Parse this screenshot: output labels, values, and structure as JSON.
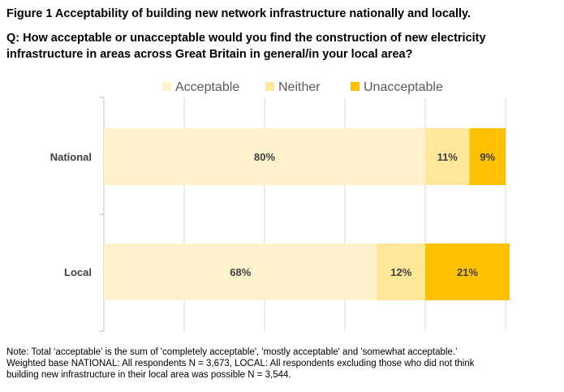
{
  "figure": {
    "title": "Figure 1 Acceptability of building new network infrastructure nationally and locally.",
    "question": "Q: How acceptable or unacceptable would you find the construction of new electricity infrastructure in areas across Great Britain in general/in your local area?"
  },
  "chart_data": {
    "type": "bar",
    "orientation": "horizontal",
    "stacked": true,
    "categories": [
      "National",
      "Local"
    ],
    "series": [
      {
        "name": "Acceptable",
        "values": [
          80,
          68
        ],
        "labels": [
          "80%",
          "68%"
        ],
        "color": "#FFF2CC"
      },
      {
        "name": "Neither",
        "values": [
          11,
          12
        ],
        "labels": [
          "11%",
          "12%"
        ],
        "color": "#FFE699"
      },
      {
        "name": "Unacceptable",
        "values": [
          9,
          21
        ],
        "labels": [
          "9%",
          "21%"
        ],
        "color": "#FFC000"
      }
    ],
    "xlim": [
      0,
      100
    ],
    "grid": true,
    "legend": "top"
  },
  "note": {
    "line1": "Note: Total ‘acceptable’ is the sum of 'completely acceptable', 'mostly acceptable' and 'somewhat acceptable.’",
    "line2": "Weighted base NATIONAL: All respondents N = 3,673, LOCAL: All respondents excluding those who did not think",
    "line3": "building new infrastructure in their local area was possible N = 3,544."
  }
}
